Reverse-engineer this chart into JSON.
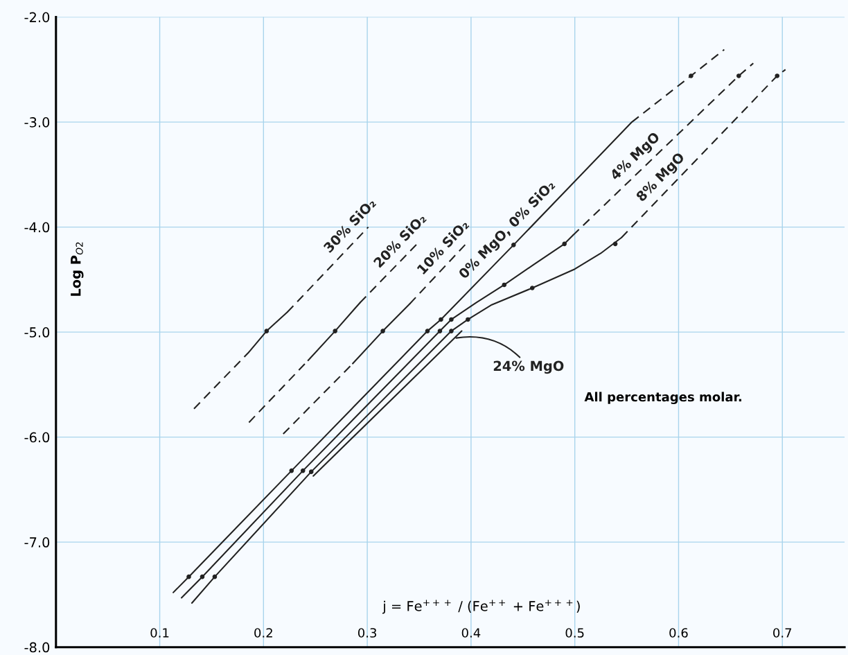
{
  "chart_data": {
    "type": "line",
    "xlabel": "j = Fe$^{+++}$ / (Fe$^{++}$ + Fe$^{+++}$)",
    "ylabel": "Log P$_{O2}$",
    "xlim": [
      0,
      0.76
    ],
    "ylim": [
      -8,
      -2
    ],
    "xticks": [
      0.1,
      0.2,
      0.3,
      0.4,
      0.5,
      0.6,
      0.7
    ],
    "yticks": [
      {
        "value": -2,
        "label": "-2.0"
      },
      {
        "value": -3,
        "label": "-3.0"
      },
      {
        "value": -4,
        "label": "-4.0"
      },
      {
        "value": -5,
        "label": "-5.0"
      },
      {
        "value": -6,
        "label": "-6.0"
      },
      {
        "value": -7,
        "label": "-7.0"
      },
      {
        "value": -8,
        "label": "-8.0"
      }
    ],
    "grid": true,
    "marker": "none",
    "annotations": [
      "All percentages molar."
    ],
    "series": [
      {
        "name": "0% MgO, 0% SiO₂",
        "color": "#222222",
        "line_style": "solid",
        "x": [
          0.113,
          0.128,
          0.227,
          0.358,
          0.371,
          0.441,
          0.555
        ],
        "values": [
          -7.48,
          -7.33,
          -6.32,
          -4.99,
          -4.88,
          -4.17,
          -3.0
        ]
      },
      {
        "color": "#222222",
        "line_style": "dashed",
        "x": [
          0.555,
          0.612,
          0.644
        ],
        "values": [
          -3.0,
          -2.56,
          -2.31
        ]
      },
      {
        "color": "#222222",
        "line_style": "solid",
        "x": [
          0.121,
          0.141,
          0.238,
          0.37,
          0.381,
          0.405,
          0.432,
          0.46,
          0.49,
          0.498
        ],
        "values": [
          -7.53,
          -7.33,
          -6.32,
          -4.99,
          -4.88,
          -4.72,
          -4.55,
          -4.36,
          -4.16,
          -4.08
        ]
      },
      {
        "name": "4% MgO",
        "color": "#222222",
        "line_style": "dashed",
        "x": [
          0.498,
          0.658,
          0.672
        ],
        "values": [
          -4.08,
          -2.56,
          -2.44
        ]
      },
      {
        "color": "#222222",
        "line_style": "solid",
        "x": [
          0.131,
          0.153,
          0.246,
          0.381,
          0.397,
          0.42,
          0.459,
          0.5,
          0.525,
          0.545
        ],
        "values": [
          -7.58,
          -7.33,
          -6.33,
          -4.99,
          -4.88,
          -4.74,
          -4.58,
          -4.4,
          -4.25,
          -4.1
        ]
      },
      {
        "name": "8% MgO",
        "color": "#222222",
        "line_style": "dashed",
        "x": [
          0.545,
          0.695,
          0.703
        ],
        "values": [
          -4.1,
          -2.56,
          -2.5
        ]
      },
      {
        "name": "24% MgO",
        "color": "#222222",
        "line_style": "solid",
        "x": [
          0.248,
          0.391
        ],
        "values": [
          -6.37,
          -4.99
        ]
      },
      {
        "color": "#222222",
        "line_style": "dashed",
        "x": [
          0.133,
          0.186
        ],
        "values": [
          -5.73,
          -5.19
        ]
      },
      {
        "color": "#222222",
        "line_style": "solid",
        "x": [
          0.186,
          0.203,
          0.223
        ],
        "values": [
          -5.19,
          -4.99,
          -4.81
        ]
      },
      {
        "name": "30% SiO₂",
        "color": "#222222",
        "line_style": "dashed",
        "x": [
          0.223,
          0.301
        ],
        "values": [
          -4.81,
          -4.0
        ]
      },
      {
        "color": "#222222",
        "line_style": "dashed",
        "x": [
          0.186,
          0.243
        ],
        "values": [
          -5.86,
          -5.27
        ]
      },
      {
        "color": "#222222",
        "line_style": "solid",
        "x": [
          0.243,
          0.269,
          0.293
        ],
        "values": [
          -5.27,
          -4.99,
          -4.72
        ]
      },
      {
        "name": "20% SiO₂",
        "color": "#222222",
        "line_style": "dashed",
        "x": [
          0.293,
          0.35
        ],
        "values": [
          -4.72,
          -4.14
        ]
      },
      {
        "color": "#222222",
        "line_style": "dashed",
        "x": [
          0.219,
          0.286
        ],
        "values": [
          -5.97,
          -5.3
        ]
      },
      {
        "color": "#222222",
        "line_style": "solid",
        "x": [
          0.286,
          0.315,
          0.341
        ],
        "values": [
          -5.3,
          -4.99,
          -4.73
        ]
      },
      {
        "name": "10% SiO₂",
        "color": "#222222",
        "line_style": "dashed",
        "x": [
          0.341,
          0.397
        ],
        "values": [
          -4.73,
          -4.14
        ]
      },
      {
        "type": "scatter",
        "marker": "circle",
        "color": "#222222",
        "x": [
          0.128,
          0.141,
          0.153,
          0.227,
          0.238,
          0.246,
          0.358,
          0.371,
          0.37,
          0.381,
          0.381,
          0.397,
          0.441,
          0.49,
          0.539,
          0.459,
          0.432,
          0.612,
          0.658,
          0.695,
          0.203,
          0.269,
          0.315
        ],
        "values": [
          -7.33,
          -7.33,
          -7.33,
          -6.32,
          -6.32,
          -6.33,
          -4.99,
          -4.88,
          -4.99,
          -4.88,
          -4.99,
          -4.88,
          -4.17,
          -4.16,
          -4.16,
          -4.58,
          -4.55,
          -2.56,
          -2.56,
          -2.56,
          -4.99,
          -4.99,
          -4.99
        ]
      }
    ]
  }
}
